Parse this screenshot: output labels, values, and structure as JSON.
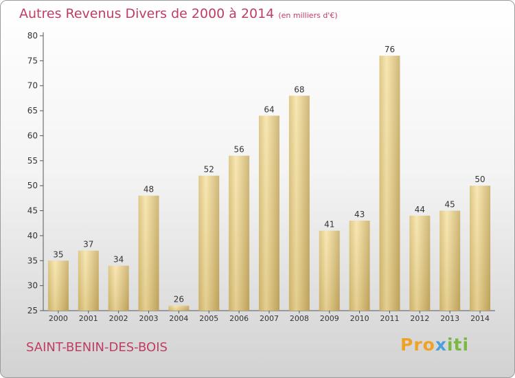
{
  "header": {
    "title": "Autres Revenus Divers de 2000 à 2014",
    "unit": "(en milliers d'€)"
  },
  "footer": {
    "commune": "SAINT-BENIN-DES-BOIS",
    "logo_text": "Proxiti"
  },
  "colors": {
    "title": "#bf3d63",
    "bar_light": "#f5dc9a",
    "bar_dark": "#c8ad63",
    "axis": "#555555"
  },
  "chart_data": {
    "type": "bar",
    "title": "Autres Revenus Divers de 2000 à 2014",
    "subtitle": "(en milliers d'€)",
    "categories": [
      "2000",
      "2001",
      "2002",
      "2003",
      "2004",
      "2005",
      "2006",
      "2007",
      "2008",
      "2009",
      "2010",
      "2011",
      "2012",
      "2013",
      "2014"
    ],
    "values": [
      35,
      37,
      34,
      48,
      26,
      52,
      56,
      64,
      68,
      41,
      43,
      76,
      44,
      45,
      50
    ],
    "ylim": [
      25,
      80
    ],
    "yticks": [
      25,
      30,
      35,
      40,
      45,
      50,
      55,
      60,
      65,
      70,
      75,
      80
    ],
    "grid": false,
    "legend": "none"
  }
}
